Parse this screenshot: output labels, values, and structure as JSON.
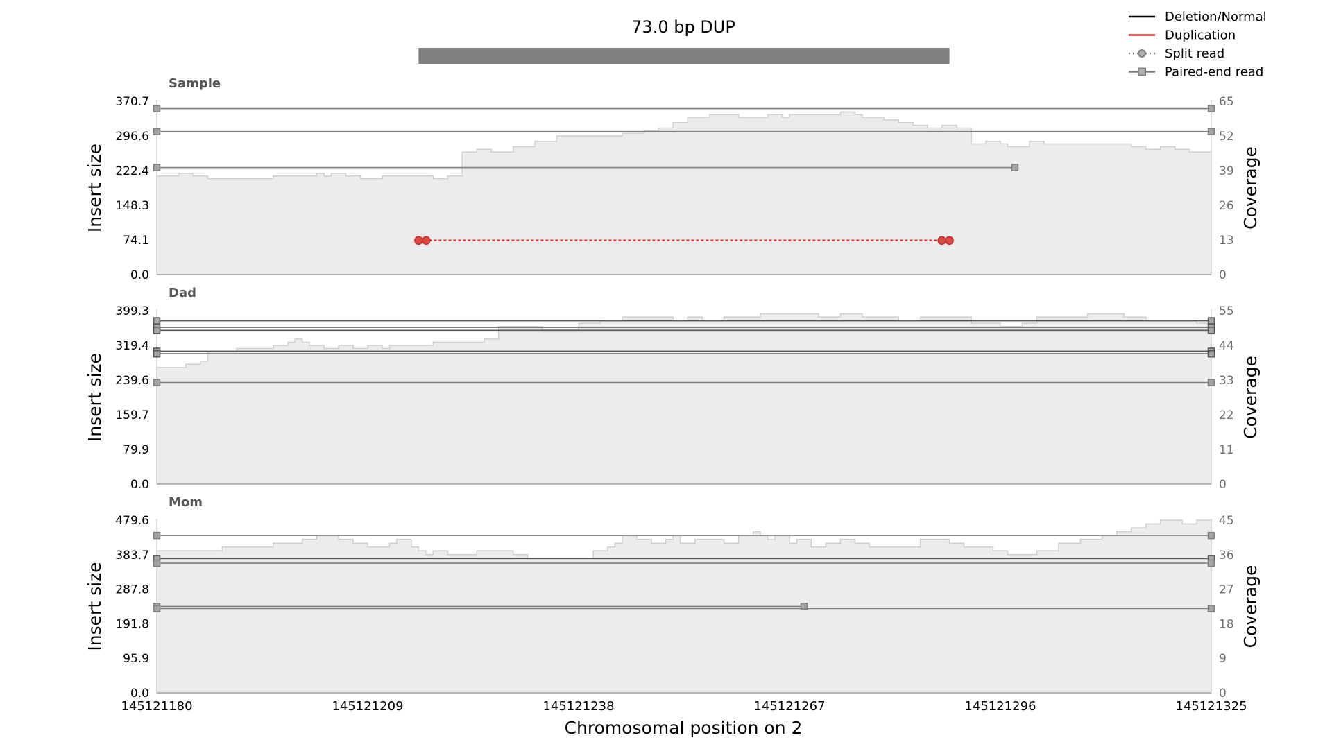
{
  "chart_data": {
    "type": "line",
    "title": "73.0 bp DUP",
    "xlabel": "Chromosomal position on 2",
    "xlim": [
      145121180,
      145121325
    ],
    "x_ticks": [
      "145121180",
      "145121209",
      "145121238",
      "145121267",
      "145121296",
      "145121325"
    ],
    "event": {
      "start": 145121216,
      "end": 145121289,
      "color": "#808080"
    },
    "legend": {
      "placement": "top-right",
      "items": [
        {
          "label": "Deletion/Normal",
          "color": "#000000",
          "style": "solid"
        },
        {
          "label": "Duplication",
          "color": "#e0332d",
          "style": "solid"
        },
        {
          "label": "Split read",
          "color": "#808080",
          "style": "dotted-circle"
        },
        {
          "label": "Paired-end read",
          "color": "#808080",
          "style": "solid-square"
        }
      ]
    },
    "panels": [
      {
        "name": "Sample",
        "ylabel_left": "Insert size",
        "ylabel_right": "Coverage",
        "ylim": [
          0,
          370.7
        ],
        "y_ticks": [
          "0.0",
          "74.1",
          "148.3",
          "222.4",
          "296.6",
          "370.7"
        ],
        "cov_lim": [
          0,
          65
        ],
        "cov_ticks": [
          "0",
          "13",
          "26",
          "39",
          "52",
          "65"
        ],
        "coverage_x": [
          145121180,
          145121183,
          145121185,
          145121187,
          145121189,
          145121190,
          145121193,
          145121196,
          145121199,
          145121202,
          145121203,
          145121204,
          145121206,
          145121208,
          145121211,
          145121213,
          145121215,
          145121218,
          145121220,
          145121222,
          145121224,
          145121226,
          145121227,
          145121229,
          145121232,
          145121235,
          145121237,
          145121239,
          145121241,
          145121242,
          145121243,
          145121244,
          145121245,
          145121246,
          145121247,
          145121249,
          145121251,
          145121253,
          145121256,
          145121258,
          145121260,
          145121264,
          145121266,
          145121267,
          145121268,
          145121270,
          145121272,
          145121274,
          145121276,
          145121277,
          145121278,
          145121279,
          145121280,
          145121281,
          145121282,
          145121284,
          145121286,
          145121288,
          145121290,
          145121292,
          145121294,
          145121296,
          145121297,
          145121300,
          145121302,
          145121305,
          145121308,
          145121311,
          145121314,
          145121316,
          145121318,
          145121320,
          145121322,
          145121325
        ],
        "coverage_y": [
          37,
          38,
          37,
          36,
          36,
          36,
          36,
          37,
          37,
          38,
          37,
          38,
          37,
          36,
          37,
          37,
          37,
          36,
          37,
          46,
          47,
          46,
          46,
          48,
          50,
          52,
          52,
          52,
          52,
          52,
          52,
          53,
          53,
          53,
          54,
          55,
          57,
          59,
          60,
          60,
          59,
          60,
          59,
          60,
          60,
          60,
          60,
          61,
          60,
          59,
          59,
          59,
          58,
          58,
          57,
          56,
          55,
          56,
          55,
          49,
          50,
          49,
          48,
          50,
          49,
          49,
          49,
          49,
          48,
          47,
          48,
          47,
          46,
          46
        ],
        "reads": [
          {
            "type": "paired",
            "x1": 145121180,
            "x2": 145121325,
            "y": 355,
            "color": "#7f7f7f"
          },
          {
            "type": "paired",
            "x1": 145121180,
            "x2": 145121325,
            "y": 306,
            "color": "#7f7f7f"
          },
          {
            "type": "paired",
            "x1": 145121180,
            "x2": 145121298,
            "y": 229,
            "color": "#7f7f7f"
          },
          {
            "type": "split",
            "x1": 145121216,
            "x2": 145121289,
            "y": 73,
            "color": "#e0332d"
          }
        ]
      },
      {
        "name": "Dad",
        "ylabel_left": "Insert size",
        "ylabel_right": "Coverage",
        "ylim": [
          0,
          399.3
        ],
        "y_ticks": [
          "0.0",
          "79.9",
          "159.7",
          "239.6",
          "319.4",
          "399.3"
        ],
        "cov_lim": [
          0,
          55
        ],
        "cov_ticks": [
          "0",
          "11",
          "22",
          "33",
          "44",
          "55"
        ],
        "coverage_x": [
          145121180,
          145121184,
          145121186,
          145121187,
          145121191,
          145121194,
          145121196,
          145121198,
          145121199,
          145121200,
          145121201,
          145121203,
          145121205,
          145121207,
          145121209,
          145121211,
          145121212,
          145121214,
          145121218,
          145121222,
          145121225,
          145121227,
          145121230,
          145121233,
          145121235,
          145121238,
          145121241,
          145121244,
          145121248,
          145121251,
          145121253,
          145121255,
          145121258,
          145121260,
          145121263,
          145121267,
          145121271,
          145121274,
          145121277,
          145121280,
          145121282,
          145121285,
          145121289,
          145121292,
          145121293,
          145121296,
          145121299,
          145121301,
          145121304,
          145121306,
          145121308,
          145121310,
          145121313,
          145121316,
          145121320,
          145121323,
          145121325
        ],
        "coverage_y": [
          37,
          38,
          39,
          42,
          43,
          43,
          44,
          45,
          46,
          45,
          44,
          43,
          44,
          43,
          44,
          43,
          44,
          44,
          45,
          45,
          46,
          50,
          50,
          49,
          49,
          51,
          52,
          53,
          53,
          52,
          53,
          52,
          53,
          53,
          54,
          54,
          53,
          54,
          53,
          53,
          52,
          53,
          53,
          51,
          51,
          50,
          51,
          53,
          53,
          53,
          54,
          54,
          53,
          52,
          52,
          51,
          52
        ],
        "reads": [
          {
            "type": "paired",
            "x1": 145121180,
            "x2": 145121325,
            "y": 376,
            "color": "#555555"
          },
          {
            "type": "paired",
            "x1": 145121180,
            "x2": 145121325,
            "y": 361,
            "color": "#555555"
          },
          {
            "type": "paired",
            "x1": 145121180,
            "x2": 145121325,
            "y": 354,
            "color": "#555555"
          },
          {
            "type": "paired",
            "x1": 145121180,
            "x2": 145121325,
            "y": 306,
            "color": "#555555"
          },
          {
            "type": "paired",
            "x1": 145121180,
            "x2": 145121325,
            "y": 300,
            "color": "#555555"
          },
          {
            "type": "paired",
            "x1": 145121180,
            "x2": 145121325,
            "y": 234,
            "color": "#7f7f7f"
          }
        ]
      },
      {
        "name": "Mom",
        "ylabel_left": "Insert size",
        "ylabel_right": "Coverage",
        "ylim": [
          0,
          479.6
        ],
        "y_ticks": [
          "0.0",
          "95.9",
          "191.8",
          "287.8",
          "383.7",
          "479.6"
        ],
        "cov_lim": [
          0,
          45
        ],
        "cov_ticks": [
          "0",
          "9",
          "18",
          "27",
          "36",
          "45"
        ],
        "coverage_x": [
          145121180,
          145121189,
          145121192,
          145121196,
          145121200,
          145121202,
          145121205,
          145121207,
          145121209,
          145121212,
          145121213,
          145121215,
          145121216,
          145121217,
          145121218,
          145121220,
          145121222,
          145121224,
          145121229,
          145121231,
          145121233,
          145121236,
          145121238,
          145121240,
          145121242,
          145121243,
          145121244,
          145121246,
          145121248,
          145121250,
          145121251,
          145121252,
          145121254,
          145121256,
          145121258,
          145121260,
          145121261,
          145121262,
          145121263,
          145121264,
          145121265,
          145121267,
          145121268,
          145121270,
          145121272,
          145121274,
          145121276,
          145121278,
          145121280,
          145121285,
          145121289,
          145121291,
          145121293,
          145121295,
          145121297,
          145121299,
          145121301,
          145121304,
          145121307,
          145121310,
          145121312,
          145121314,
          145121316,
          145121318,
          145121320,
          145121321,
          145121323,
          145121325
        ],
        "coverage_y": [
          37,
          38,
          38,
          39,
          40,
          41,
          40,
          39,
          38,
          39,
          40,
          38,
          37,
          36,
          37,
          36,
          36,
          37,
          36,
          35,
          35,
          35,
          35,
          37,
          38,
          39,
          41,
          40,
          39,
          40,
          41,
          39,
          40,
          40,
          39,
          41,
          41,
          42,
          41,
          40,
          41,
          39,
          40,
          38,
          39,
          40,
          39,
          38,
          38,
          40,
          39,
          38,
          38,
          37,
          36,
          36,
          37,
          39,
          40,
          41,
          42,
          43,
          44,
          45,
          45,
          44,
          45,
          45
        ],
        "reads": [
          {
            "type": "paired",
            "x1": 145121180,
            "x2": 145121325,
            "y": 437,
            "color": "#7f7f7f"
          },
          {
            "type": "paired",
            "x1": 145121180,
            "x2": 145121325,
            "y": 373,
            "color": "#555555"
          },
          {
            "type": "paired",
            "x1": 145121180,
            "x2": 145121325,
            "y": 360,
            "color": "#7f7f7f"
          },
          {
            "type": "paired",
            "x1": 145121180,
            "x2": 145121269,
            "y": 240,
            "color": "#7f7f7f"
          },
          {
            "type": "paired",
            "x1": 145121180,
            "x2": 145121325,
            "y": 234,
            "color": "#7f7f7f"
          }
        ]
      }
    ]
  }
}
